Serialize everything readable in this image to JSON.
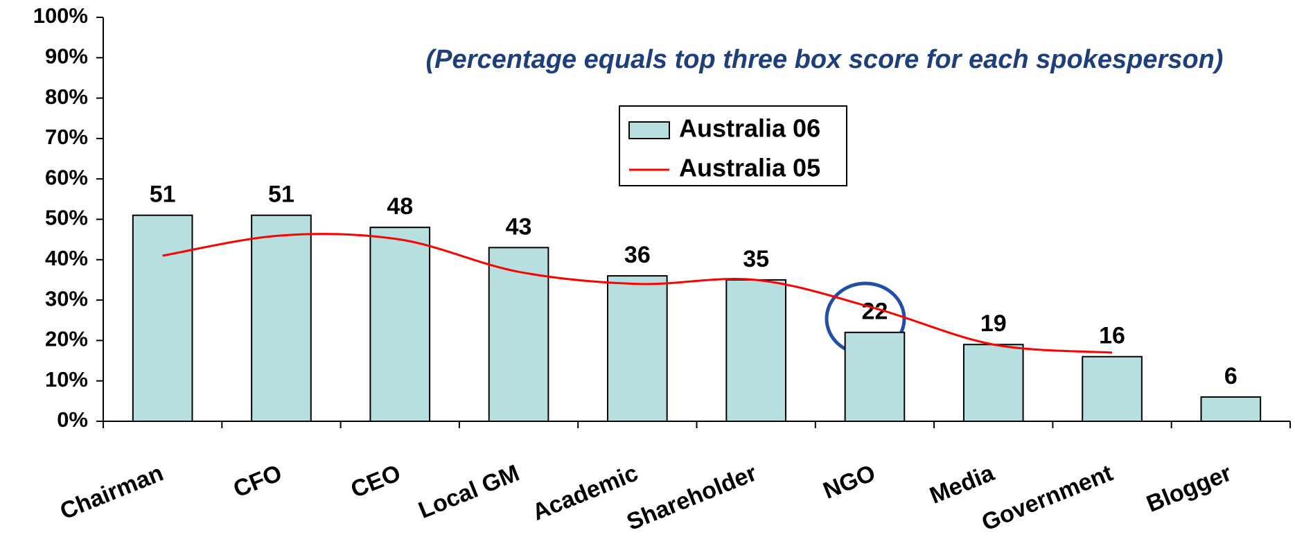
{
  "chart_data": {
    "type": "bar",
    "annotation": "(Percentage equals top three box score for each spokesperson)",
    "categories": [
      "Chairman",
      "CFO",
      "CEO",
      "Local GM",
      "Academic",
      "Shareholder",
      "NGO",
      "Media",
      "Government",
      "Blogger"
    ],
    "series": [
      {
        "name": "Australia 06",
        "type": "bar",
        "color": "#b8dfe0",
        "values": [
          51,
          51,
          48,
          43,
          36,
          35,
          22,
          19,
          16,
          6
        ]
      },
      {
        "name": "Australia 05",
        "type": "line",
        "color": "#ff0000",
        "values": [
          41,
          46,
          45,
          37,
          34,
          35,
          28,
          19,
          17,
          null
        ]
      }
    ],
    "ylim": [
      0,
      100
    ],
    "yticks": [
      {
        "value": 0,
        "label": "0%"
      },
      {
        "value": 10,
        "label": "10%"
      },
      {
        "value": 20,
        "label": "20%"
      },
      {
        "value": 30,
        "label": "30%"
      },
      {
        "value": 40,
        "label": "40%"
      },
      {
        "value": 50,
        "label": "50%"
      },
      {
        "value": 60,
        "label": "60%"
      },
      {
        "value": 70,
        "label": "70%"
      },
      {
        "value": 80,
        "label": "80%"
      },
      {
        "value": 90,
        "label": "90%"
      },
      {
        "value": 100,
        "label": "100%"
      }
    ]
  }
}
